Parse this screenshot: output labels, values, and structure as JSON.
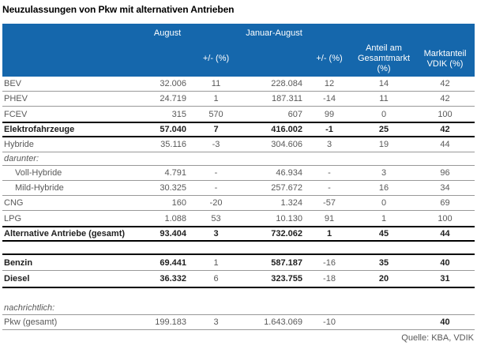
{
  "title": "Neuzulassungen von Pkw mit alternativen Antrieben",
  "source": "Quelle: KBA, VDIK",
  "colors": {
    "header_bg": "#1567AC",
    "header_text": "#FFFFFF",
    "body_text": "#595959",
    "strong_text": "#1F1F1F",
    "thin_rule": "#999999",
    "thick_rule": "#000000"
  },
  "chart_data": {
    "type": "table",
    "title": "Neuzulassungen von Pkw mit alternativen Antrieben",
    "columns": [
      "",
      "August",
      "+/- (%)",
      "Januar-August",
      "+/- (%)",
      "Anteil am Gesamtmarkt (%)",
      "Marktanteil VDIK (%)"
    ],
    "rows": [
      {
        "label": "BEV",
        "aug": "32.006",
        "aug_pct": "11",
        "jan": "228.084",
        "jan_pct": "12",
        "anteil": "14",
        "vdik": "42"
      },
      {
        "label": "PHEV",
        "aug": "24.719",
        "aug_pct": "1",
        "jan": "187.311",
        "jan_pct": "-14",
        "anteil": "11",
        "vdik": "42"
      },
      {
        "label": "FCEV",
        "aug": "315",
        "aug_pct": "570",
        "jan": "607",
        "jan_pct": "99",
        "anteil": "0",
        "vdik": "100"
      },
      {
        "label": "Elektrofahrzeuge",
        "aug": "57.040",
        "aug_pct": "7",
        "jan": "416.002",
        "jan_pct": "-1",
        "anteil": "25",
        "vdik": "42"
      },
      {
        "label": "Hybride",
        "aug": "35.116",
        "aug_pct": "-3",
        "jan": "304.606",
        "jan_pct": "3",
        "anteil": "19",
        "vdik": "44"
      },
      {
        "label": "darunter:"
      },
      {
        "label": "Voll-Hybride",
        "aug": "4.791",
        "aug_pct": "-",
        "jan": "46.934",
        "jan_pct": "-",
        "anteil": "3",
        "vdik": "96"
      },
      {
        "label": "Mild-Hybride",
        "aug": "30.325",
        "aug_pct": "-",
        "jan": "257.672",
        "jan_pct": "-",
        "anteil": "16",
        "vdik": "34"
      },
      {
        "label": "CNG",
        "aug": "160",
        "aug_pct": "-20",
        "jan": "1.324",
        "jan_pct": "-57",
        "anteil": "0",
        "vdik": "69"
      },
      {
        "label": "LPG",
        "aug": "1.088",
        "aug_pct": "53",
        "jan": "10.130",
        "jan_pct": "91",
        "anteil": "1",
        "vdik": "100"
      },
      {
        "label": "Alternative Antriebe (gesamt)",
        "aug": "93.404",
        "aug_pct": "3",
        "jan": "732.062",
        "jan_pct": "1",
        "anteil": "45",
        "vdik": "44"
      },
      {
        "label": "Benzin",
        "aug": "69.441",
        "aug_pct": "1",
        "jan": "587.187",
        "jan_pct": "-16",
        "anteil": "35",
        "vdik": "40"
      },
      {
        "label": "Diesel",
        "aug": "36.332",
        "aug_pct": "6",
        "jan": "323.755",
        "jan_pct": "-18",
        "anteil": "20",
        "vdik": "31"
      },
      {
        "label": "nachrichtlich:"
      },
      {
        "label": "Pkw (gesamt)",
        "aug": "199.183",
        "aug_pct": "3",
        "jan": "1.643.069",
        "jan_pct": "-10",
        "anteil": "",
        "vdik": "40"
      }
    ]
  }
}
